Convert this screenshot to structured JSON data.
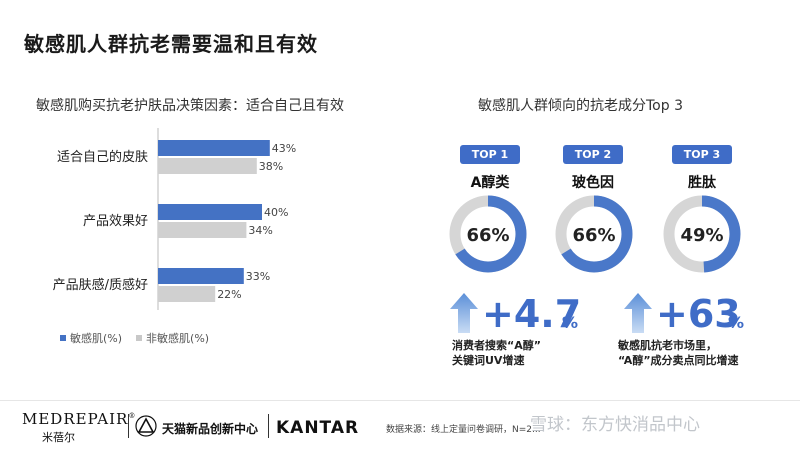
{
  "page_title": "敏感肌人群抗老需要温和且有效",
  "left_subtitle": "敏感肌购买抗老护肤品决策因素：适合自己且有效",
  "right_subtitle": "敏感肌人群倾向的抗老成分Top 3",
  "colors": {
    "blue": "#4472c4",
    "gray": "#d0d0d0",
    "accent": "#3f6cc7"
  },
  "chart_data": [
    {
      "type": "bar",
      "orientation": "horizontal",
      "title": "敏感肌购买抗老护肤品决策因素：适合自己且有效",
      "categories": [
        "适合自己的皮肤",
        "产品效果好",
        "产品肤感/质感好"
      ],
      "series": [
        {
          "name": "敏感肌(%)",
          "values": [
            43,
            40,
            33
          ],
          "labels": [
            "43%",
            "40%",
            "33%"
          ],
          "color": "#4472c4"
        },
        {
          "name": "非敏感肌(%)",
          "values": [
            38,
            34,
            22
          ],
          "labels": [
            "38%",
            "34%",
            "22%"
          ],
          "color": "#d0d0d0"
        }
      ],
      "legend": "bottom-left"
    },
    {
      "type": "pie",
      "variant": "donut",
      "title": "敏感肌人群倾向的抗老成分Top 3",
      "items": [
        {
          "rank": "TOP 1",
          "name": "A醇类",
          "value": 66,
          "label": "66%"
        },
        {
          "rank": "TOP 2",
          "name": "玻色因",
          "value": 66,
          "label": "66%"
        },
        {
          "rank": "TOP 3",
          "name": "胜肽",
          "value": 49,
          "label": "49%"
        }
      ]
    }
  ],
  "stats": [
    {
      "number": "+4.7",
      "unit": "%",
      "desc_line1": "消费者搜索“A醇”",
      "desc_line2": "关键词UV增速"
    },
    {
      "number": "+63",
      "unit": "%",
      "desc_line1": "敏感肌抗老市场里，",
      "desc_line2": "“A醇”成分卖点同比增速"
    }
  ],
  "footer": {
    "brand": "MEDREPAIR",
    "brand_mark": "®",
    "brand_cn": "米蓓尔",
    "tmall": "天猫新品创新中心",
    "kantar": "KANTAR",
    "source": "数据来源：线上定量问卷调研，N=2..."
  },
  "watermark": "雪球：东方快消品中心"
}
